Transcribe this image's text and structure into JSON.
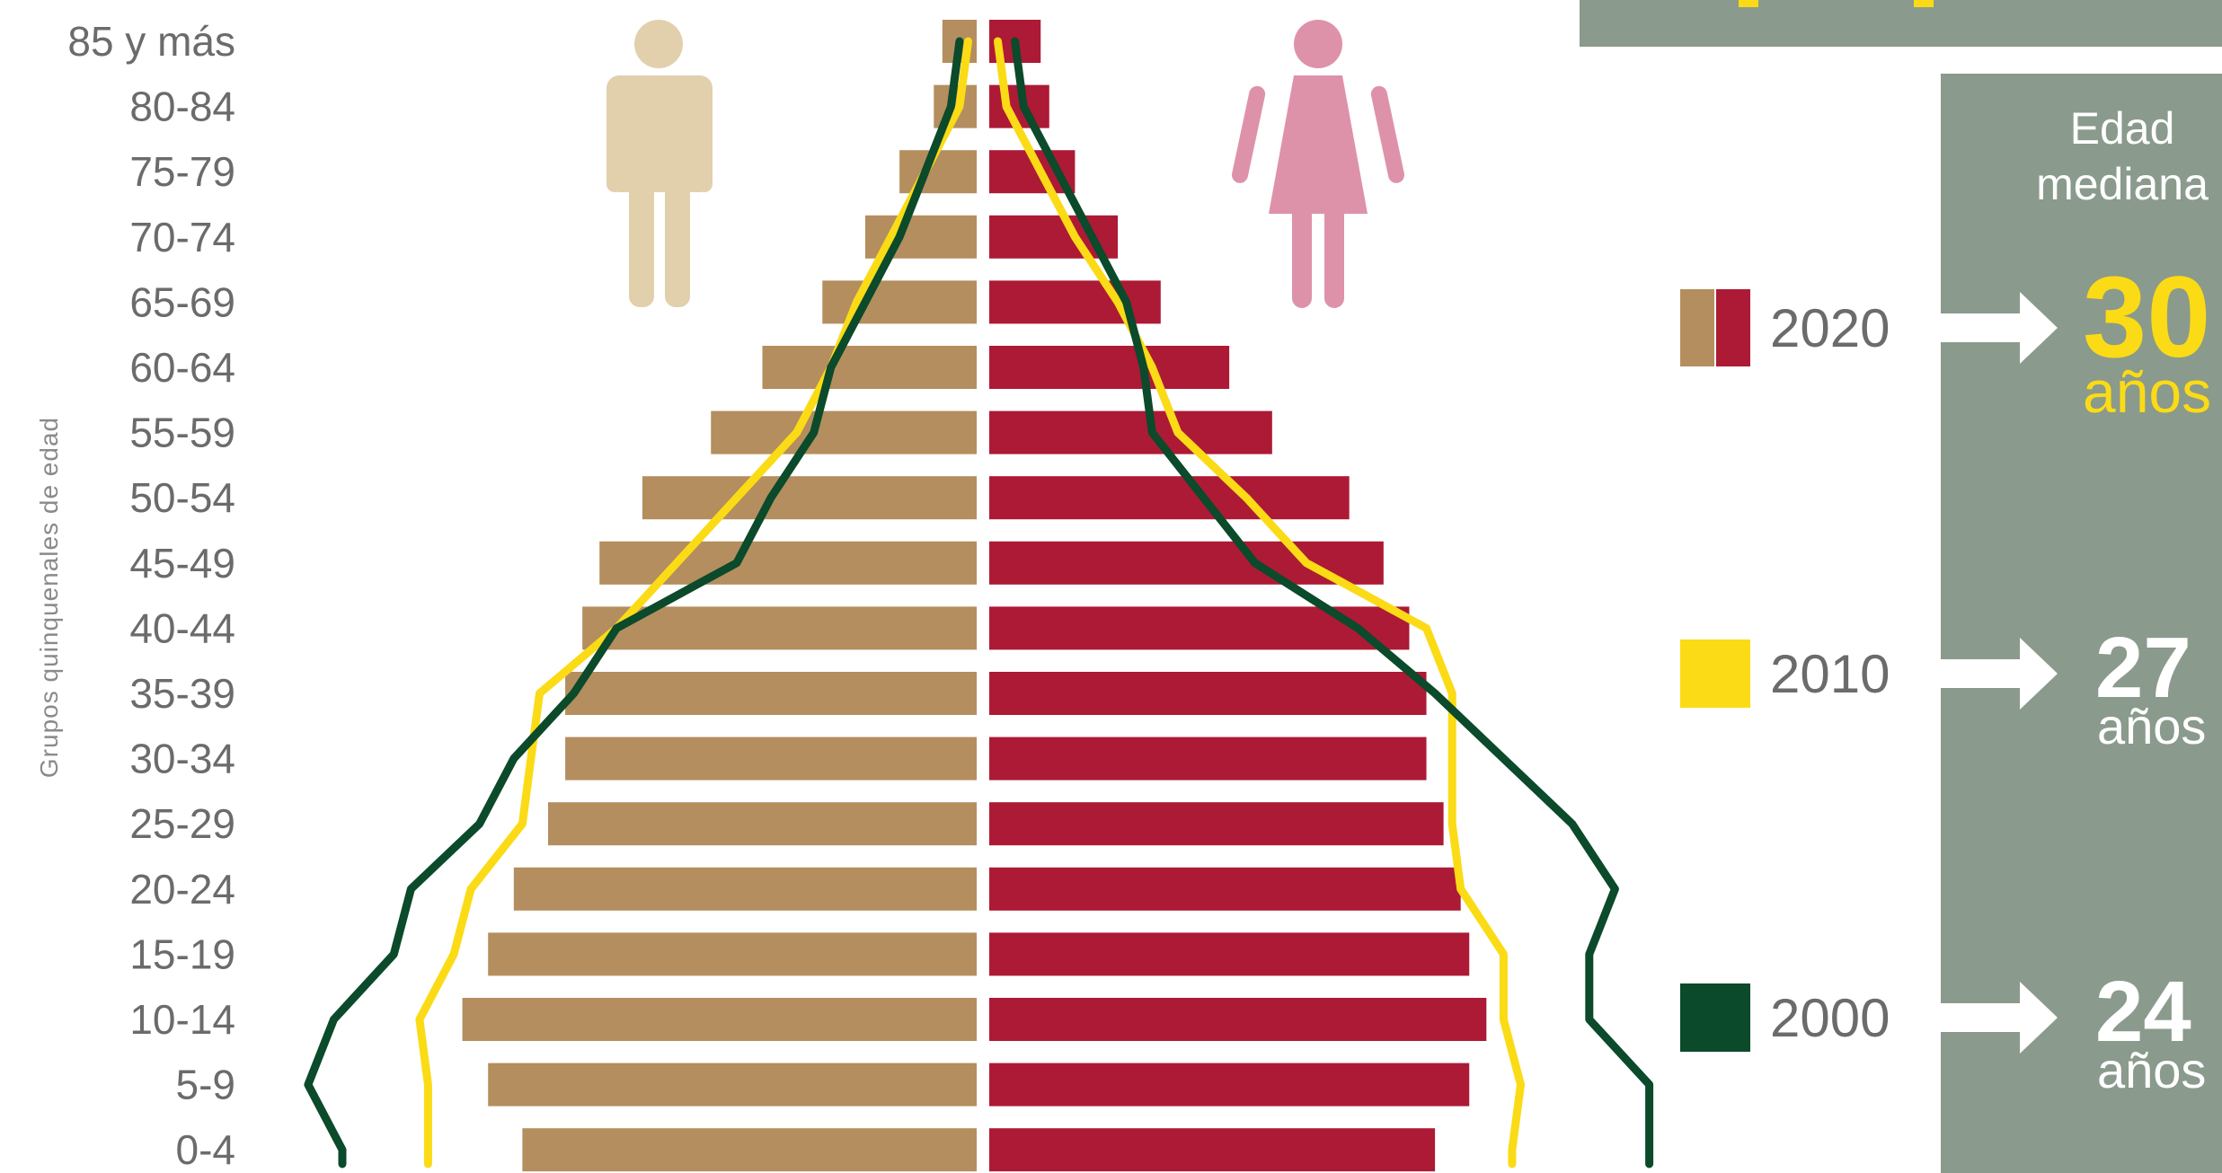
{
  "chart_data": {
    "type": "bar",
    "subtype": "population-pyramid",
    "ylabel": "Grupos quinquenales de edad",
    "categories": [
      "85 y más",
      "80-84",
      "75-79",
      "70-74",
      "65-69",
      "60-64",
      "55-59",
      "50-54",
      "45-49",
      "40-44",
      "35-39",
      "30-34",
      "25-29",
      "20-24",
      "15-19",
      "10-14",
      "5-9",
      "0-4"
    ],
    "series": [
      {
        "name": "2020",
        "sex": "hombres",
        "kind": "bar",
        "color": "#b48e5e",
        "values": [
          0.4,
          0.5,
          0.9,
          1.3,
          1.8,
          2.5,
          3.1,
          3.9,
          4.4,
          4.6,
          4.8,
          4.8,
          5.0,
          5.4,
          5.7,
          6.0,
          5.7,
          5.3
        ]
      },
      {
        "name": "2020",
        "sex": "mujeres",
        "kind": "bar",
        "color": "#ad1a35",
        "values": [
          0.6,
          0.7,
          1.0,
          1.5,
          2.0,
          2.8,
          3.3,
          4.2,
          4.6,
          4.9,
          5.1,
          5.1,
          5.3,
          5.5,
          5.6,
          5.8,
          5.6,
          5.2
        ]
      },
      {
        "name": "2010",
        "sex": "hombres",
        "kind": "line",
        "color": "#fbdb15",
        "values": [
          0.1,
          0.2,
          0.6,
          1.0,
          1.4,
          1.7,
          2.1,
          2.8,
          3.5,
          4.2,
          5.1,
          5.2,
          5.3,
          5.9,
          6.1,
          6.5,
          6.4,
          6.4
        ]
      },
      {
        "name": "2010",
        "sex": "mujeres",
        "kind": "line",
        "color": "#fbdb15",
        "values": [
          0.1,
          0.2,
          0.6,
          1.0,
          1.5,
          1.9,
          2.2,
          3.0,
          3.7,
          5.1,
          5.4,
          5.4,
          5.4,
          5.5,
          6.0,
          6.0,
          6.2,
          6.1
        ]
      },
      {
        "name": "2000",
        "sex": "hombres",
        "kind": "line",
        "color": "#0b4a2a",
        "values": [
          0.2,
          0.3,
          0.6,
          0.9,
          1.3,
          1.7,
          1.9,
          2.4,
          2.8,
          4.2,
          4.7,
          5.4,
          5.8,
          6.6,
          6.8,
          7.5,
          7.8,
          7.4
        ]
      },
      {
        "name": "2000",
        "sex": "mujeres",
        "kind": "line",
        "color": "#0b4a2a",
        "values": [
          0.3,
          0.4,
          0.8,
          1.2,
          1.6,
          1.8,
          1.9,
          2.5,
          3.1,
          4.3,
          5.2,
          6.0,
          6.8,
          7.3,
          7.0,
          7.0,
          7.7,
          7.7
        ]
      }
    ],
    "legend": [
      {
        "year": "2020",
        "colors": [
          "#b48e5e",
          "#ad1a35"
        ]
      },
      {
        "year": "2010",
        "colors": [
          "#fbdb15"
        ]
      },
      {
        "year": "2000",
        "colors": [
          "#0b4a2a"
        ]
      }
    ],
    "legend_position": "right",
    "grid": false,
    "xlim": [
      0,
      8
    ]
  },
  "median_panel": {
    "title_line1": "Edad",
    "title_line2": "mediana",
    "panel_color": "#8a9a8c",
    "items": [
      {
        "year": "2020",
        "number": "30",
        "unit": "años",
        "color": "#fbdb15"
      },
      {
        "year": "2010",
        "number": "27",
        "unit": "años",
        "color": "#ffffff"
      },
      {
        "year": "2000",
        "number": "24",
        "unit": "años",
        "color": "#ffffff"
      }
    ]
  },
  "icons": {
    "male": {
      "name": "man-icon",
      "color": "#e2d0ad"
    },
    "female": {
      "name": "woman-icon",
      "color": "#de92aa"
    }
  }
}
